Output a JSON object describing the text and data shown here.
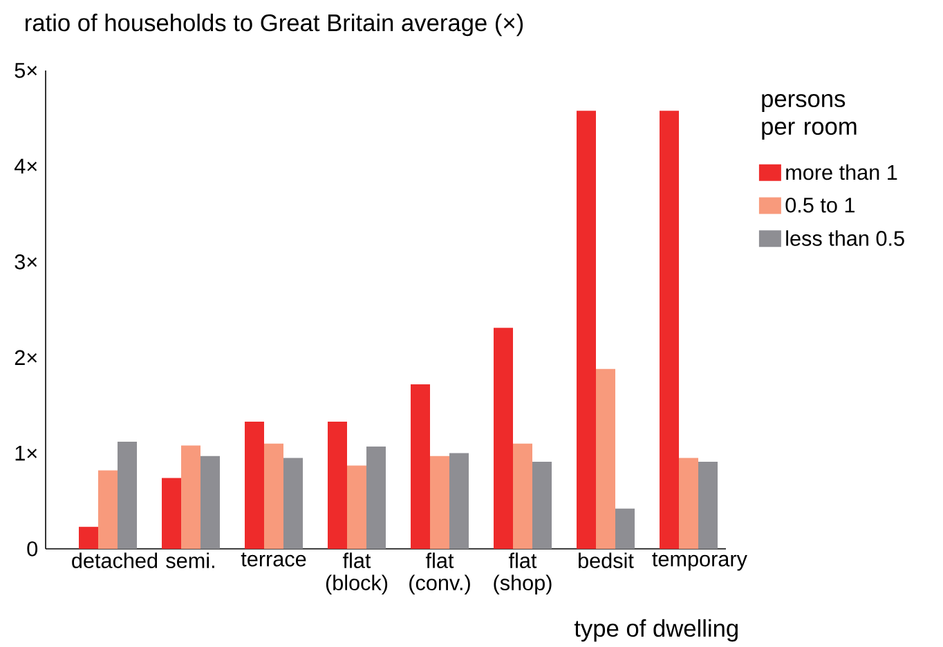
{
  "chart_data": {
    "type": "bar",
    "title": "ratio of households to Great Britain average (×)",
    "xlabel": "type of dwelling",
    "legend_title": "persons per room",
    "categories": [
      "detached",
      "semi.",
      "terrace",
      "flat (block)",
      "flat (conv.)",
      "flat (shop)",
      "bedsit",
      "temporary"
    ],
    "series": [
      {
        "name": "more than 1",
        "color": "#ee2b2b",
        "values": [
          0.23,
          0.74,
          1.33,
          1.33,
          1.72,
          2.31,
          4.58,
          4.58
        ]
      },
      {
        "name": "0.5 to 1",
        "color": "#f89a7c",
        "values": [
          0.82,
          1.08,
          1.1,
          0.87,
          0.97,
          1.1,
          1.88,
          0.95
        ]
      },
      {
        "name": "less than 0.5",
        "color": "#8e8e93",
        "values": [
          1.12,
          0.97,
          0.95,
          1.07,
          1.0,
          0.91,
          0.42,
          0.91
        ]
      }
    ],
    "ylim": [
      0,
      5
    ],
    "yticks": [
      0,
      {
        "value": 1,
        "label": "1×"
      },
      {
        "value": 2,
        "label": "2×"
      },
      {
        "value": 3,
        "label": "3×"
      },
      {
        "value": 4,
        "label": "4×"
      },
      {
        "value": 5,
        "label": "5×"
      }
    ],
    "grid": false,
    "legend": "top right"
  }
}
